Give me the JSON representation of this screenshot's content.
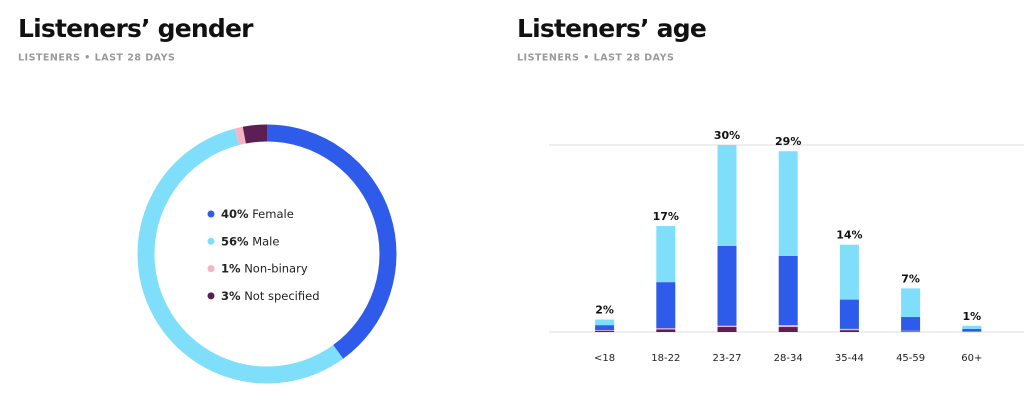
{
  "chart_data": [
    {
      "type": "pie",
      "title": "Listeners’ gender",
      "subtitle": "LISTENERS • LAST 28 DAYS",
      "categories": [
        "Female",
        "Male",
        "Non-binary",
        "Not specified"
      ],
      "values": [
        40,
        56,
        1,
        3
      ],
      "value_labels": [
        "40%",
        "56%",
        "1%",
        "3%"
      ],
      "colors": [
        "#2e5bea",
        "#7fdffa",
        "#f7b3c4",
        "#5c1f55"
      ],
      "donut": true
    },
    {
      "type": "bar",
      "stacked": true,
      "title": "Listeners’ age",
      "subtitle": "LISTENERS • LAST 28 DAYS",
      "categories": [
        "<18",
        "18-22",
        "23-27",
        "28-34",
        "35-44",
        "45-59",
        "60+"
      ],
      "series": [
        {
          "color": "#5c1f55",
          "values": [
            0.2,
            0.4,
            0.8,
            0.8,
            0.3,
            0.1,
            0.05
          ]
        },
        {
          "color": "#f7b3c4",
          "values": [
            0.1,
            0.2,
            0.2,
            0.3,
            0.2,
            0.1,
            0.05
          ]
        },
        {
          "color": "#2e5bea",
          "values": [
            0.8,
            7.4,
            12.8,
            11.1,
            4.7,
            2.2,
            0.4
          ]
        },
        {
          "color": "#7fdffa",
          "values": [
            0.9,
            9.0,
            16.2,
            16.8,
            8.8,
            4.6,
            0.5
          ]
        }
      ],
      "totals": [
        2,
        17,
        30,
        29,
        14,
        7,
        1
      ],
      "total_labels": [
        "2%",
        "17%",
        "30%",
        "29%",
        "14%",
        "7%",
        "1%"
      ],
      "ylim": [
        0,
        30
      ]
    }
  ]
}
